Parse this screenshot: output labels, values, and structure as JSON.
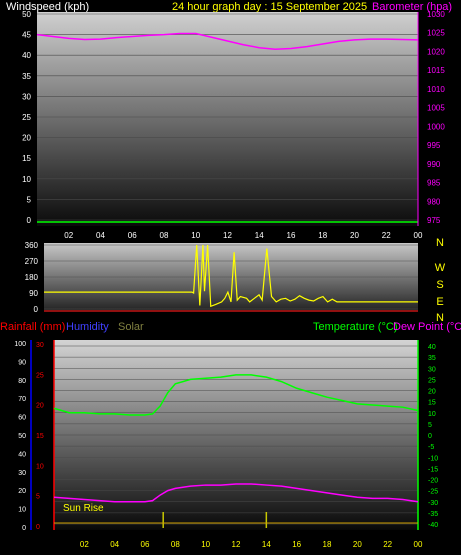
{
  "header": {
    "left_label": "Windspeed (kph)",
    "center_label": "24 hour graph day : 15 September 2025",
    "right_label": "Barometer (hpa)"
  },
  "direction_letters": [
    "N",
    "W",
    "S",
    "E",
    "N"
  ],
  "lower_header": {
    "rainfall_label": "Rainfall (mm)",
    "humidity_label": "Humidity",
    "solar_label": "Solar",
    "temperature_label": "Temperature (°C)",
    "dewpoint_label": "Dew Point (°C)"
  },
  "annotation": {
    "sunrise_label": "Sun Rise"
  },
  "colors": {
    "wind": "#00ff00",
    "barometer": "#ff00ff",
    "direction": "#ffff00",
    "rain": "#ff0000",
    "humidity": "#0000ff",
    "solar": "#808040",
    "temperature": "#00ff00",
    "dewpoint": "#ff00ff",
    "sun_marker": "#c8c800",
    "title": "#ffff00"
  },
  "chart_data": [
    {
      "type": "line",
      "name": "wind_barometer",
      "xlim": [
        0,
        24
      ],
      "x_ticks": [
        "02",
        "04",
        "06",
        "08",
        "10",
        "12",
        "14",
        "16",
        "18",
        "20",
        "22",
        "00"
      ],
      "ylim": [
        0,
        50
      ],
      "y_ticks": [
        0,
        5,
        10,
        15,
        20,
        25,
        30,
        35,
        40,
        45,
        50
      ],
      "y2lim": [
        975,
        1030
      ],
      "y2_ticks": [
        975,
        980,
        985,
        990,
        995,
        1000,
        1005,
        1010,
        1015,
        1020,
        1025,
        1030
      ],
      "series": [
        {
          "axis": "y",
          "x": [
            0,
            24
          ],
          "values": [
            0,
            0
          ]
        },
        {
          "axis": "y2",
          "x": [
            0,
            1,
            2,
            3,
            4,
            5,
            6,
            7,
            8,
            9,
            10,
            11,
            12,
            13,
            14,
            15,
            16,
            17,
            18,
            19,
            20,
            21,
            22,
            23,
            24
          ],
          "values": [
            1024.5,
            1024,
            1023.5,
            1023.2,
            1023.3,
            1023.7,
            1024,
            1024.3,
            1024.5,
            1024.8,
            1024.8,
            1023.8,
            1022.8,
            1021.8,
            1021,
            1020.6,
            1020.8,
            1021.3,
            1022,
            1022.7,
            1023.1,
            1023.3,
            1023.3,
            1023.2,
            1023.1
          ]
        }
      ]
    },
    {
      "type": "line",
      "name": "wind_direction",
      "xlim": [
        0,
        24
      ],
      "ylim": [
        0,
        360
      ],
      "y_ticks": [
        0,
        90,
        180,
        270,
        360
      ],
      "series": [
        {
          "x": [
            0,
            9.5,
            9.6,
            9.8,
            10,
            10.2,
            10.3,
            10.5,
            10.7,
            11,
            11.4,
            11.6,
            11.8,
            12,
            12.2,
            12.4,
            12.6,
            13,
            13.2,
            13.5,
            13.8,
            14,
            14.3,
            14.6,
            14.9,
            15.2,
            15.5,
            15.8,
            16.1,
            16.4,
            16.7,
            17,
            17.3,
            17.6,
            17.9,
            18.2,
            18.5,
            18.8,
            24
          ],
          "values": [
            95,
            95,
            90,
            360,
            20,
            360,
            100,
            360,
            15,
            25,
            40,
            60,
            95,
            40,
            320,
            50,
            70,
            60,
            40,
            60,
            80,
            50,
            340,
            70,
            40,
            55,
            60,
            45,
            55,
            75,
            60,
            50,
            45,
            60,
            70,
            40,
            55,
            40,
            40
          ]
        }
      ]
    },
    {
      "type": "line",
      "name": "rain_humidity_solar_temperature_dewpoint",
      "xlim": [
        0,
        24
      ],
      "x_ticks": [
        "02",
        "04",
        "06",
        "08",
        "10",
        "12",
        "14",
        "16",
        "18",
        "20",
        "22",
        "00"
      ],
      "y_left_rain": [
        0,
        5,
        10,
        15,
        20,
        25,
        30
      ],
      "y_left_humidity": [
        0,
        10,
        20,
        30,
        40,
        50,
        60,
        70,
        80,
        90,
        100
      ],
      "yRlim": [
        -40,
        40
      ],
      "yR_ticks": [
        40,
        35,
        30,
        25,
        20,
        15,
        10,
        5,
        0,
        -5,
        -10,
        -15,
        -20,
        -25,
        -30,
        -35,
        -40
      ],
      "sunrise_x": 7.2,
      "noon_x": 14,
      "series": [
        {
          "name": "temperature",
          "x": [
            0,
            0.5,
            1,
            2,
            3,
            4,
            5,
            5.5,
            6,
            6.5,
            7,
            7.5,
            8,
            8.5,
            9,
            10,
            11,
            12,
            13,
            14,
            15,
            16,
            17,
            18,
            19,
            20,
            21,
            22,
            23,
            24
          ],
          "values": [
            12,
            11,
            10,
            10,
            9.5,
            9.5,
            9,
            9,
            9,
            9.5,
            13,
            19,
            23,
            24,
            25,
            25.5,
            26,
            27,
            27,
            26,
            24,
            21,
            19,
            17,
            15.5,
            14,
            13.5,
            13,
            12.5,
            11
          ]
        },
        {
          "name": "dewpoint",
          "x": [
            0,
            1,
            2,
            3,
            4,
            5,
            6,
            6.5,
            7,
            7.5,
            8,
            9,
            10,
            11,
            12,
            13,
            14,
            15,
            16,
            17,
            18,
            19,
            20,
            21,
            22,
            23,
            24
          ],
          "values": [
            -28,
            -28.5,
            -29,
            -29.5,
            -30,
            -30,
            -30,
            -29.5,
            -27,
            -25,
            -24,
            -23,
            -22.5,
            -22.5,
            -22,
            -22,
            -22.5,
            -23,
            -24,
            -25,
            -26,
            -27,
            -28,
            -28.5,
            -28.5,
            -29,
            -30
          ]
        },
        {
          "name": "humidity",
          "x": [
            0,
            24
          ],
          "values": [
            0,
            0
          ]
        },
        {
          "name": "rain",
          "x": [
            0,
            24
          ],
          "values": [
            0,
            0
          ]
        },
        {
          "name": "solar",
          "x": [
            0,
            24
          ],
          "values": [
            0,
            0
          ]
        }
      ]
    }
  ]
}
